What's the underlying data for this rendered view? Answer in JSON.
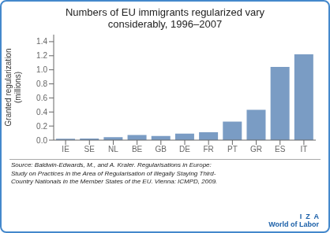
{
  "chart_data": {
    "type": "bar",
    "title": "Numbers of EU immigrants regularized vary\nconsiderably, 1996–2007",
    "categories": [
      "IE",
      "SE",
      "NL",
      "BE",
      "GB",
      "DE",
      "FR",
      "PT",
      "GR",
      "ES",
      "IT"
    ],
    "values": [
      0.02,
      0.022,
      0.042,
      0.072,
      0.06,
      0.092,
      0.112,
      0.262,
      0.432,
      1.04,
      1.22
    ],
    "color": "#7a9cc4",
    "ylabel": "Granted regularization\n(millions)",
    "ylim": [
      0,
      1.5
    ],
    "yticks": [
      {
        "value": 0.0,
        "label": "0.0"
      },
      0.2,
      0.4,
      0.6,
      0.8,
      {
        "value": 1.0,
        "label": "1.0"
      },
      1.2,
      1.4
    ],
    "grid": false,
    "annotations": [
      "Source: Baldwin-Edwards, M., and A. Kraler. Regularisations in Europe:\nStudy on Practices in the Area of Regularisation of Illegally Staying Third-\nCountry Nationals in the Member States of the EU. Vienna: ICMPD, 2009.",
      "I  Z  A",
      "World of Labor"
    ]
  }
}
